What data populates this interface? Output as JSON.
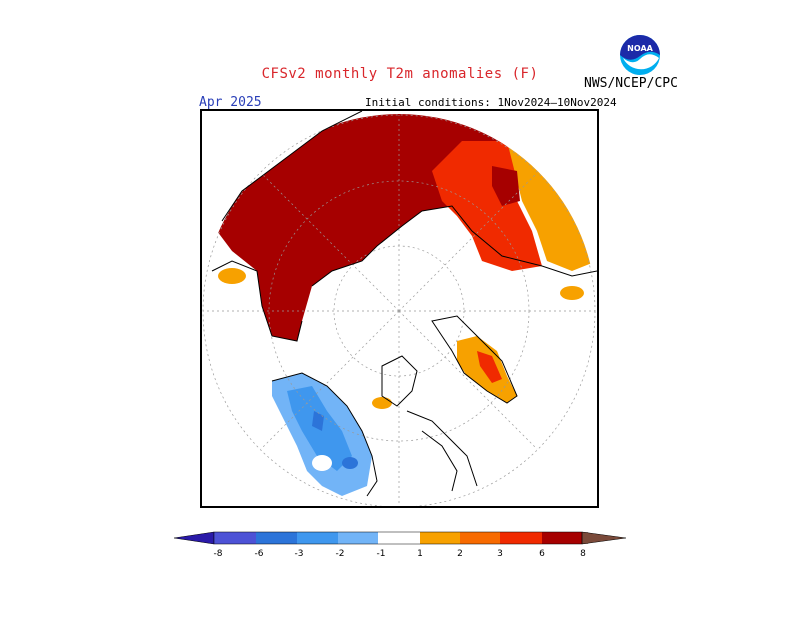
{
  "title": "CFSv2 monthly T2m anomalies (F)",
  "agency": "NWS/NCEP/CPC",
  "logo": {
    "text": "NOAA",
    "icon": "noaa-logo-icon"
  },
  "forecast_month": "Apr 2025",
  "initial_conditions": "Initial conditions: 1Nov2024–10Nov2024",
  "colors": {
    "dark_purple": "#2a1aa8",
    "blue1": "#4d52d6",
    "blue2": "#2c74d9",
    "blue3": "#3f97ee",
    "blue4": "#72b4f7",
    "light_blue": "#a9d3fb",
    "orange1": "#f7a100",
    "orange2": "#f76a00",
    "red1": "#f02a00",
    "dark_red": "#a60000",
    "pink_brown": "#c8a399",
    "brown": "#7a4a3a"
  },
  "colorbar": {
    "ticks": [
      "-8",
      "-6",
      "-3",
      "-2",
      "-1",
      "1",
      "2",
      "3",
      "6",
      "8"
    ]
  }
}
